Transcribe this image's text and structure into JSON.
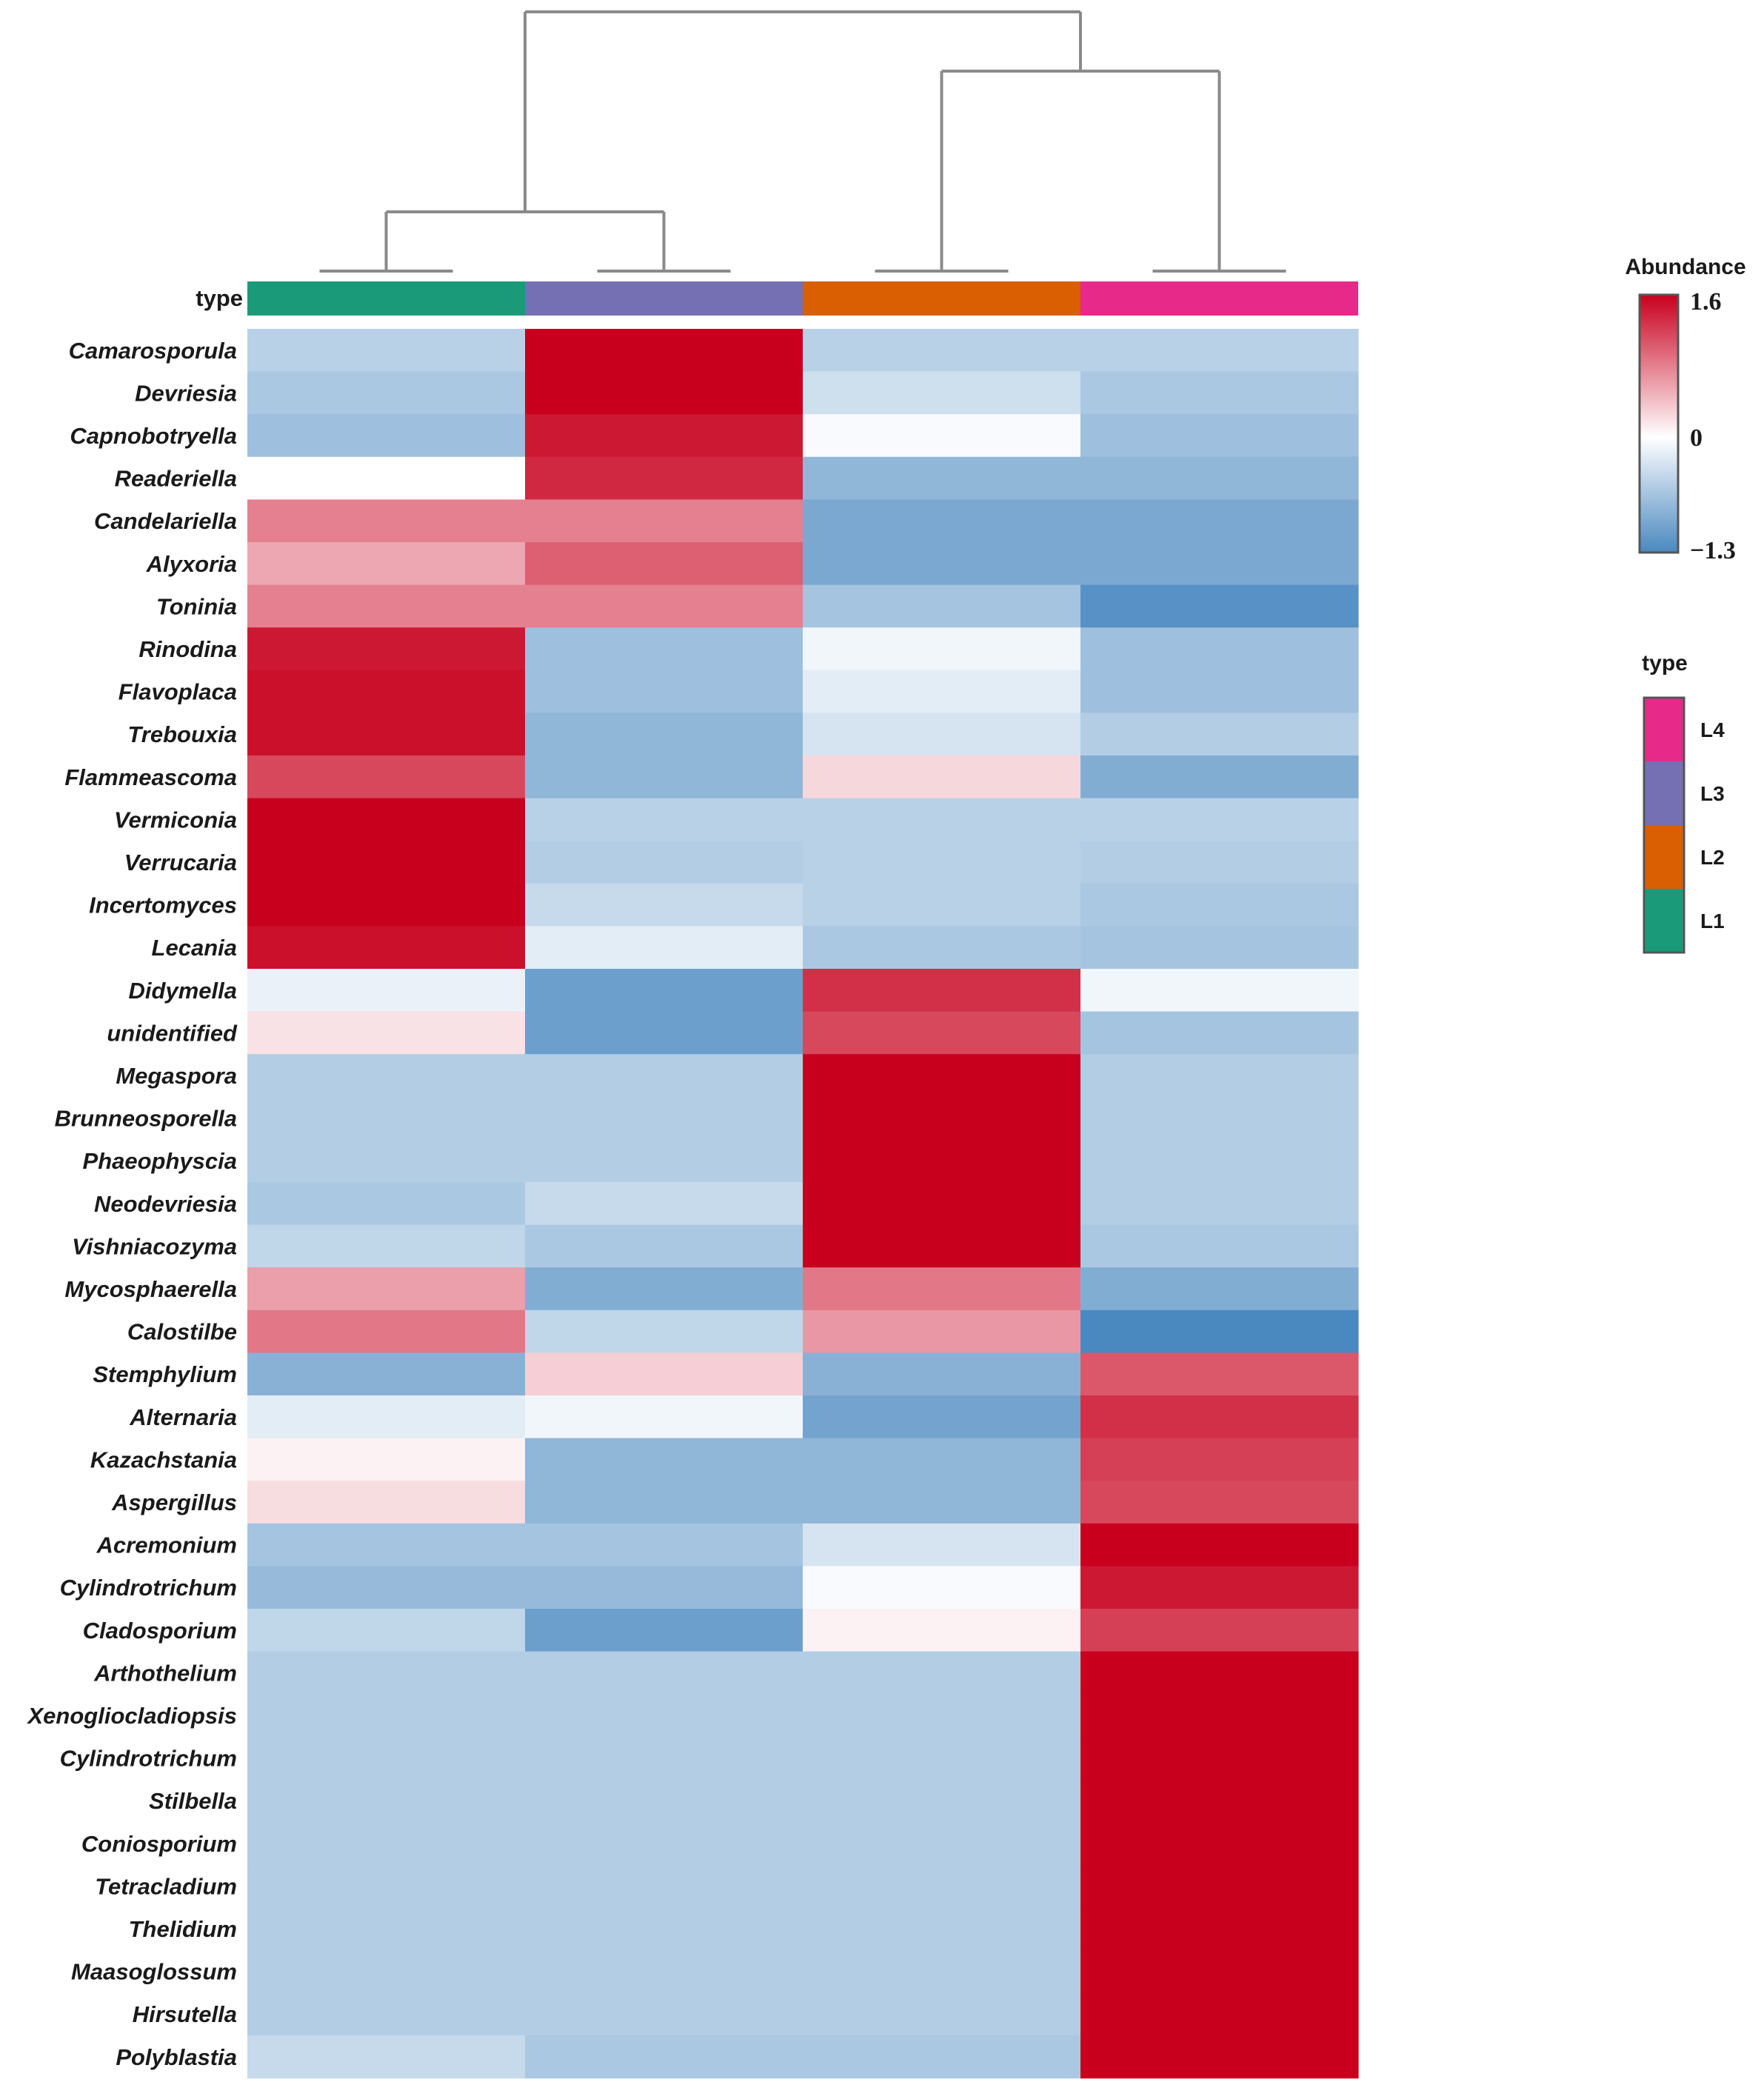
{
  "chart_data": {
    "type": "heatmap",
    "annotation_label": "type",
    "columns": [
      "L1",
      "L3",
      "L2",
      "L4"
    ],
    "column_colors": {
      "L1": "#1a9a78",
      "L3": "#7570b3",
      "L2": "#d95f02",
      "L4": "#e7298a"
    },
    "rows": [
      "Camarosporula",
      "Devriesia",
      "Capnobotryella",
      "Readeriella",
      "Candelariella",
      "Alyxoria",
      "Toninia",
      "Rinodina",
      "Flavoplaca",
      "Trebouxia",
      "Flammeascoma",
      "Vermiconia",
      "Verrucaria",
      "Incertomyces",
      "Lecania",
      "Didymella",
      "unidentified",
      "Megaspora",
      "Brunneosporella",
      "Phaeophyscia",
      "Neodevriesia",
      "Vishniacozyma",
      "Mycosphaerella",
      "Calostilbe",
      "Stemphylium",
      "Alternaria",
      "Kazachstania",
      "Aspergillus",
      "Acremonium",
      "Cylindrotrichum",
      "Cladosporium",
      "Arthothelium",
      "Xenogliocladiopsis",
      "Cylindrotrichum",
      "Stilbella",
      "Coniosporium",
      "Tetracladium",
      "Thelidium",
      "Maasoglossum",
      "Hirsutella",
      "Polyblastia"
    ],
    "values": [
      [
        -0.5,
        1.6,
        -0.5,
        -0.5
      ],
      [
        -0.6,
        1.6,
        -0.35,
        -0.6
      ],
      [
        -0.7,
        1.45,
        -0.05,
        -0.7
      ],
      [
        0.0,
        1.35,
        -0.8,
        -0.8
      ],
      [
        0.8,
        0.8,
        -0.95,
        -0.95
      ],
      [
        0.55,
        1.0,
        -0.95,
        -0.95
      ],
      [
        0.8,
        0.8,
        -0.65,
        -1.2
      ],
      [
        1.45,
        -0.7,
        -0.1,
        -0.7
      ],
      [
        1.5,
        -0.7,
        -0.2,
        -0.7
      ],
      [
        1.5,
        -0.8,
        -0.3,
        -0.55
      ],
      [
        1.15,
        -0.8,
        0.25,
        -0.9
      ],
      [
        1.6,
        -0.5,
        -0.5,
        -0.5
      ],
      [
        1.6,
        -0.55,
        -0.5,
        -0.55
      ],
      [
        1.6,
        -0.4,
        -0.5,
        -0.6
      ],
      [
        1.5,
        -0.2,
        -0.6,
        -0.65
      ],
      [
        -0.15,
        -1.05,
        1.3,
        -0.1
      ],
      [
        0.18,
        -1.05,
        1.15,
        -0.65
      ],
      [
        -0.55,
        -0.55,
        1.6,
        -0.55
      ],
      [
        -0.55,
        -0.55,
        1.6,
        -0.55
      ],
      [
        -0.55,
        -0.55,
        1.6,
        -0.55
      ],
      [
        -0.6,
        -0.4,
        1.6,
        -0.55
      ],
      [
        -0.45,
        -0.6,
        1.6,
        -0.6
      ],
      [
        0.6,
        -0.9,
        0.85,
        -0.9
      ],
      [
        0.85,
        -0.45,
        0.65,
        -1.3
      ],
      [
        -0.85,
        0.3,
        -0.85,
        1.05
      ],
      [
        -0.2,
        -0.1,
        -1.0,
        1.3
      ],
      [
        0.08,
        -0.8,
        -0.8,
        1.2
      ],
      [
        0.22,
        -0.8,
        -0.8,
        1.15
      ],
      [
        -0.65,
        -0.65,
        -0.3,
        1.6
      ],
      [
        -0.75,
        -0.75,
        -0.05,
        1.45
      ],
      [
        -0.45,
        -1.05,
        0.08,
        1.2
      ],
      [
        -0.55,
        -0.55,
        -0.55,
        1.6
      ],
      [
        -0.55,
        -0.55,
        -0.55,
        1.6
      ],
      [
        -0.55,
        -0.55,
        -0.55,
        1.6
      ],
      [
        -0.55,
        -0.55,
        -0.55,
        1.6
      ],
      [
        -0.55,
        -0.55,
        -0.55,
        1.6
      ],
      [
        -0.55,
        -0.55,
        -0.55,
        1.6
      ],
      [
        -0.55,
        -0.55,
        -0.55,
        1.6
      ],
      [
        -0.55,
        -0.55,
        -0.55,
        1.6
      ],
      [
        -0.55,
        -0.55,
        -0.55,
        1.6
      ],
      [
        -0.4,
        -0.6,
        -0.6,
        1.6
      ]
    ],
    "color_scale": {
      "title": "Abundance",
      "min": -1.3,
      "mid": 0,
      "max": 1.6,
      "ticks": [
        "1.6",
        "0",
        "−1.3"
      ],
      "low_color": "#4a88c0",
      "mid_color": "#ffffff",
      "high_color": "#c8001e"
    },
    "type_legend": {
      "title": "type",
      "items": [
        "L4",
        "L3",
        "L2",
        "L1"
      ]
    },
    "dendrogram": "((L1,L3),(L2,L4))"
  }
}
